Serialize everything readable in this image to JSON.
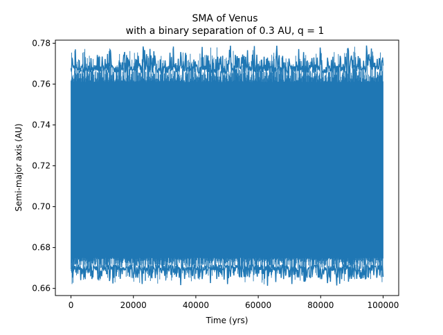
{
  "chart_data": {
    "type": "line",
    "title_line1": "SMA of Venus",
    "title_line2": "with a binary separation of 0.3 AU, q = 1",
    "xlabel": "Time (yrs)",
    "ylabel": "Semi-major axis (AU)",
    "xlim": [
      -5000,
      105000
    ],
    "ylim": [
      0.6565,
      0.7815
    ],
    "xticks": [
      0,
      20000,
      40000,
      60000,
      80000,
      100000
    ],
    "xtick_labels": [
      "0",
      "20000",
      "40000",
      "60000",
      "80000",
      "100000"
    ],
    "yticks": [
      0.66,
      0.68,
      0.7,
      0.72,
      0.74,
      0.76,
      0.78
    ],
    "ytick_labels": [
      "0.66",
      "0.68",
      "0.70",
      "0.72",
      "0.74",
      "0.76",
      "0.78"
    ],
    "grid": false,
    "series": [
      {
        "color": "#1f77b4",
        "x": [
          0,
          100000
        ],
        "band_inner": [
          0.675,
          0.761
        ],
        "band_outer": [
          0.661,
          0.779
        ],
        "description_min": 0.661,
        "description_max": 0.779
      }
    ]
  }
}
